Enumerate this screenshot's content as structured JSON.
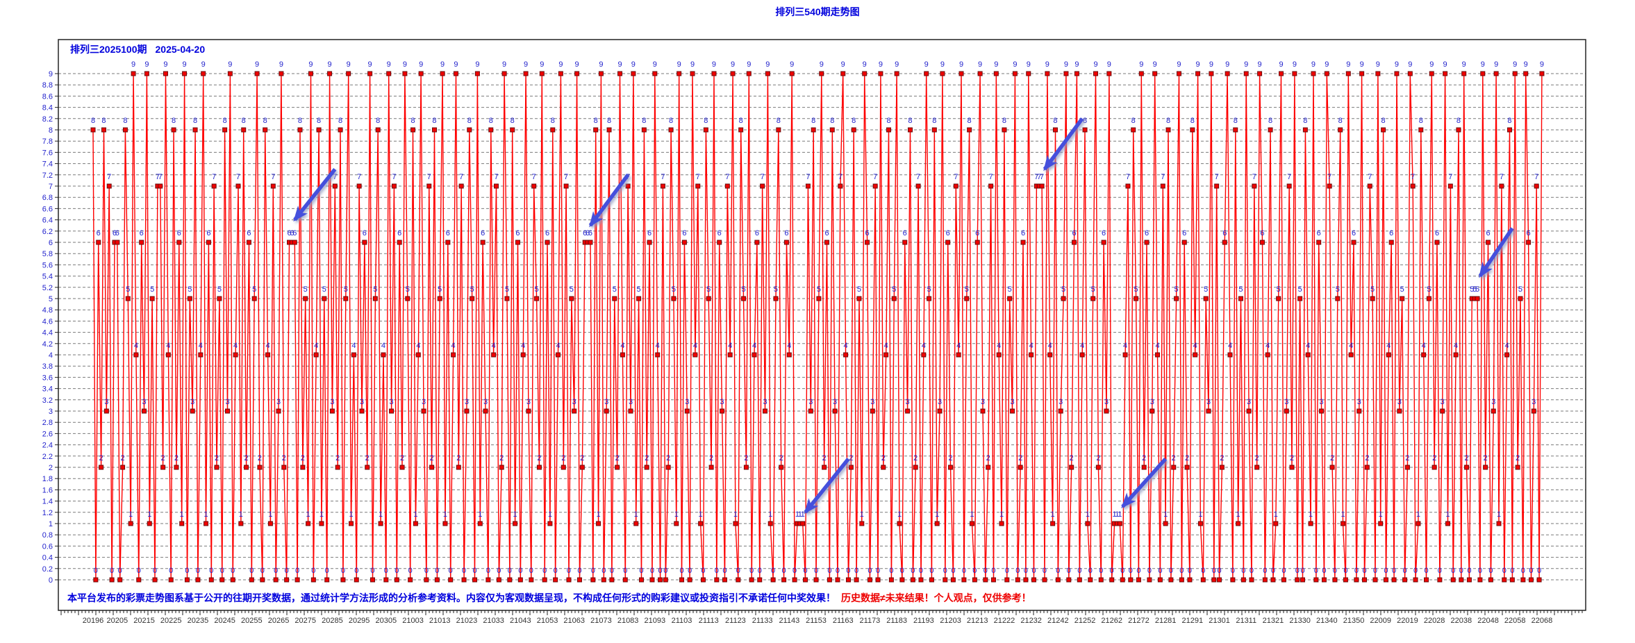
{
  "page_title": "排列三540期走势图",
  "header": {
    "issue": "排列三2025100期",
    "date": "2025-04-20"
  },
  "disclaimer": {
    "statement": "本平台发布的彩票走势图系基于公开的往期开奖数据，通过统计学方法形成的分析参考资料。内容仅为客观数据呈现，不构成任何形式的购彩建议或投资指引不承诺任何中奖效果！",
    "warning": "历史数据≠未来结果！个人观点，仅供参考！"
  },
  "colors": {
    "title_blue": "#0000DD",
    "label_blue": "#2222CC",
    "line_red": "#FF0000",
    "point_fill": "#F00000",
    "point_border": "#6A0C0C",
    "grid_gray": "#7A7A7A",
    "axis_black": "#222222",
    "x_label": "#333333",
    "arrow_blue": "#4450DC",
    "disclaimer_blue": "#0000DD",
    "disclaimer_red": "#EE0000"
  },
  "chart_data": {
    "type": "line",
    "title": "排列三540期走势图",
    "xlabel": "",
    "ylabel": "",
    "ylim": [
      0,
      9
    ],
    "y_tick_step": 0.2,
    "grid": "dashed",
    "legend": "none",
    "y_tick_labels": [
      "0",
      "0.2",
      "0.4",
      "0.6",
      "0.8",
      "1",
      "1.2",
      "1.4",
      "1.6",
      "1.8",
      "2",
      "2.2",
      "2.4",
      "2.6",
      "2.8",
      "3",
      "3.2",
      "3.4",
      "3.6",
      "3.8",
      "4",
      "4.2",
      "4.4",
      "4.6",
      "4.8",
      "5",
      "5.2",
      "5.4",
      "5.6",
      "5.8",
      "6",
      "6.2",
      "6.4",
      "6.6",
      "6.8",
      "7",
      "7.2",
      "7.4",
      "7.6",
      "7.8",
      "8",
      "8.2",
      "8.4",
      "8.6",
      "8.8",
      "9"
    ],
    "x_tick_labels": [
      "20196",
      "20205",
      "20215",
      "20225",
      "20235",
      "20245",
      "20255",
      "20265",
      "20275",
      "20285",
      "20295",
      "20305",
      "21003",
      "21013",
      "21023",
      "21033",
      "21043",
      "21053",
      "21063",
      "21073",
      "21083",
      "21093",
      "21103",
      "21113",
      "21123",
      "21133",
      "21143",
      "21153",
      "21163",
      "21173",
      "21183",
      "21193",
      "21203",
      "21213",
      "21222",
      "21232",
      "21242",
      "21252",
      "21262",
      "21272",
      "21281",
      "21291",
      "21301",
      "21311",
      "21321",
      "21330",
      "21340",
      "21350",
      "22009",
      "22019",
      "22028",
      "22038",
      "22048",
      "22058",
      "22068"
    ],
    "x_label_every": 10,
    "values": [
      8,
      0,
      6,
      2,
      8,
      3,
      7,
      0,
      6,
      6,
      0,
      2,
      8,
      5,
      1,
      9,
      4,
      0,
      6,
      3,
      9,
      1,
      5,
      0,
      7,
      7,
      2,
      9,
      4,
      0,
      8,
      2,
      6,
      1,
      9,
      0,
      5,
      3,
      8,
      0,
      4,
      9,
      1,
      6,
      0,
      7,
      2,
      5,
      0,
      8,
      3,
      9,
      0,
      4,
      7,
      1,
      8,
      2,
      6,
      0,
      5,
      9,
      2,
      0,
      8,
      4,
      1,
      7,
      0,
      3,
      9,
      2,
      0,
      6,
      6,
      6,
      0,
      8,
      2,
      5,
      1,
      9,
      0,
      4,
      8,
      1,
      5,
      0,
      9,
      3,
      7,
      2,
      8,
      0,
      5,
      9,
      1,
      4,
      0,
      7,
      3,
      6,
      2,
      9,
      0,
      5,
      8,
      1,
      4,
      0,
      9,
      3,
      7,
      0,
      6,
      2,
      9,
      5,
      0,
      8,
      1,
      4,
      9,
      3,
      0,
      7,
      2,
      8,
      0,
      5,
      9,
      1,
      6,
      0,
      4,
      9,
      2,
      7,
      0,
      3,
      8,
      5,
      0,
      9,
      1,
      6,
      3,
      0,
      8,
      4,
      7,
      0,
      2,
      9,
      5,
      0,
      8,
      1,
      6,
      0,
      4,
      9,
      3,
      0,
      7,
      5,
      2,
      9,
      0,
      6,
      1,
      8,
      0,
      4,
      9,
      2,
      7,
      0,
      5,
      3,
      9,
      0,
      2,
      6,
      6,
      6,
      0,
      8,
      1,
      9,
      0,
      3,
      8,
      0,
      5,
      2,
      9,
      4,
      0,
      7,
      3,
      9,
      1,
      5,
      0,
      8,
      2,
      6,
      0,
      9,
      4,
      0,
      7,
      0,
      2,
      8,
      5,
      1,
      9,
      0,
      6,
      3,
      0,
      9,
      4,
      7,
      1,
      0,
      8,
      5,
      2,
      9,
      0,
      6,
      3,
      0,
      7,
      4,
      9,
      1,
      0,
      8,
      5,
      2,
      9,
      0,
      4,
      6,
      0,
      7,
      3,
      9,
      1,
      0,
      5,
      8,
      2,
      0,
      6,
      4,
      9,
      0,
      1,
      1,
      1,
      0,
      7,
      3,
      8,
      0,
      5,
      9,
      2,
      6,
      0,
      8,
      3,
      0,
      7,
      9,
      4,
      0,
      2,
      8,
      0,
      5,
      1,
      9,
      6,
      0,
      3,
      7,
      0,
      9,
      2,
      4,
      8,
      0,
      5,
      9,
      1,
      0,
      6,
      3,
      8,
      0,
      2,
      7,
      0,
      4,
      9,
      5,
      0,
      8,
      1,
      3,
      9,
      0,
      6,
      2,
      0,
      7,
      4,
      9,
      0,
      5,
      8,
      1,
      0,
      6,
      9,
      3,
      0,
      2,
      7,
      0,
      9,
      4,
      1,
      8,
      0,
      5,
      3,
      9,
      0,
      2,
      6,
      0,
      9,
      4,
      0,
      7,
      7,
      7,
      0,
      9,
      4,
      1,
      8,
      0,
      3,
      5,
      9,
      0,
      2,
      6,
      9,
      0,
      4,
      8,
      1,
      0,
      5,
      9,
      2,
      0,
      6,
      3,
      9,
      0,
      1,
      1,
      1,
      0,
      4,
      7,
      0,
      8,
      5,
      0,
      9,
      2,
      6,
      0,
      3,
      9,
      4,
      0,
      7,
      1,
      8,
      0,
      2,
      5,
      9,
      0,
      6,
      2,
      0,
      8,
      4,
      9,
      1,
      0,
      5,
      3,
      9,
      0,
      7,
      0,
      2,
      6,
      9,
      4,
      0,
      8,
      1,
      5,
      0,
      9,
      3,
      0,
      7,
      2,
      9,
      6,
      0,
      4,
      8,
      0,
      1,
      5,
      9,
      0,
      3,
      7,
      2,
      9,
      0,
      5,
      0,
      8,
      4,
      1,
      9,
      0,
      6,
      3,
      0,
      9,
      7,
      2,
      0,
      5,
      8,
      1,
      0,
      9,
      4,
      6,
      0,
      3,
      9,
      0,
      2,
      7,
      5,
      0,
      9,
      1,
      8,
      0,
      4,
      6,
      0,
      9,
      3,
      5,
      0,
      2,
      9,
      7,
      0,
      1,
      8,
      4,
      0,
      5,
      9,
      2,
      6,
      0,
      3,
      9,
      1,
      7,
      0,
      4,
      8,
      0,
      9,
      2,
      0,
      5,
      5,
      5,
      0,
      9,
      2,
      6,
      0,
      3,
      9,
      1,
      7,
      0,
      4,
      8,
      0,
      9,
      2,
      5,
      0,
      9,
      6,
      0,
      3,
      7,
      0,
      9
    ],
    "annotations": [
      {
        "type": "arrow",
        "tip_col": 75,
        "tip_value": 6.4,
        "tail_col": 90,
        "tail_value": 7.3
      },
      {
        "type": "arrow",
        "tip_col": 185,
        "tip_value": 6.3,
        "tail_col": 199,
        "tail_value": 7.2
      },
      {
        "type": "arrow",
        "tip_col": 354,
        "tip_value": 7.3,
        "tail_col": 368,
        "tail_value": 8.2
      },
      {
        "type": "arrow",
        "tip_col": 265,
        "tip_value": 1.2,
        "tail_col": 281,
        "tail_value": 2.15
      },
      {
        "type": "arrow",
        "tip_col": 383,
        "tip_value": 1.3,
        "tail_col": 399,
        "tail_value": 2.15
      },
      {
        "type": "arrow",
        "tip_col": 516,
        "tip_value": 5.4,
        "tail_col": 528,
        "tail_value": 6.25
      }
    ]
  }
}
